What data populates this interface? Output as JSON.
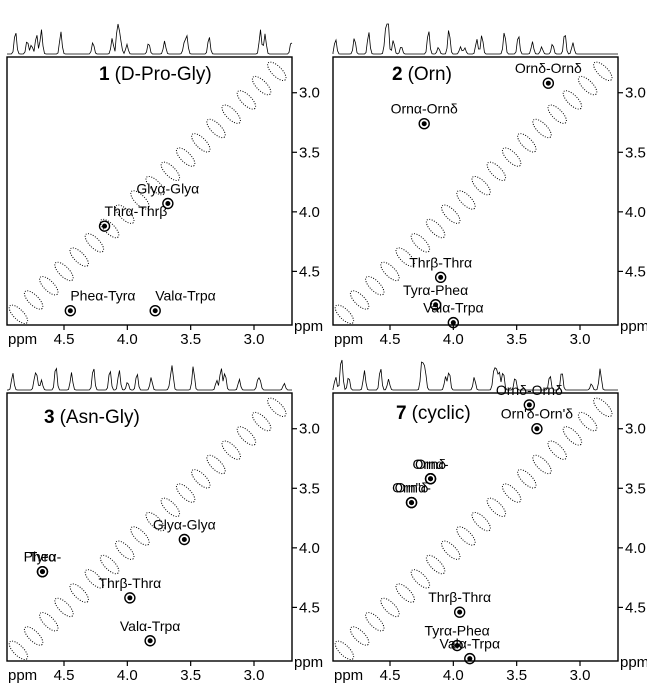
{
  "chart_data": [
    {
      "type": "contour",
      "panel_label": "1",
      "title": "(D-Pro-Gly)",
      "xlabel": "ppm",
      "ylabel": "ppm",
      "x_ticks": [
        4.5,
        4.0,
        3.5,
        3.0
      ],
      "y_ticks": [
        3.0,
        3.5,
        4.0,
        4.5
      ],
      "xlim": [
        4.95,
        2.7
      ],
      "ylim": [
        2.7,
        4.95
      ],
      "annotations": [
        {
          "text": "Thrα-Thrβ",
          "x": 4.18,
          "y": 4.12
        },
        {
          "text": "Glyα-Glyα",
          "x": 3.68,
          "y": 3.93
        },
        {
          "text": "Pheα-Tyrα",
          "x": 4.45,
          "y": 4.83
        },
        {
          "text": "Valα-Trpα",
          "x": 3.78,
          "y": 4.83
        }
      ]
    },
    {
      "type": "contour",
      "panel_label": "2",
      "title": "(Orn)",
      "xlabel": "ppm",
      "ylabel": "ppm",
      "x_ticks": [
        4.5,
        4.0,
        3.5,
        3.0
      ],
      "y_ticks": [
        3.0,
        3.5,
        4.0,
        4.5
      ],
      "xlim": [
        4.95,
        2.7
      ],
      "ylim": [
        2.7,
        4.95
      ],
      "annotations": [
        {
          "text": "Ornδ-Ornδ",
          "x": 3.25,
          "y": 2.92
        },
        {
          "text": "Ornα-Ornδ",
          "x": 4.23,
          "y": 3.26
        },
        {
          "text": "Thrβ-Thrα",
          "x": 4.1,
          "y": 4.55
        },
        {
          "text": "Tyrα-Pheα",
          "x": 4.14,
          "y": 4.78
        },
        {
          "text": "Valα-Trpα",
          "x": 4.0,
          "y": 4.93
        }
      ]
    },
    {
      "type": "contour",
      "panel_label": "3",
      "title": "(Asn-Gly)",
      "xlabel": "ppm",
      "ylabel": "ppm",
      "x_ticks": [
        4.5,
        4.0,
        3.5,
        3.0
      ],
      "y_ticks": [
        3.0,
        3.5,
        4.0,
        4.5
      ],
      "xlim": [
        4.95,
        2.7
      ],
      "ylim": [
        2.7,
        4.95
      ],
      "annotations": [
        {
          "text": "Glyα-Glyα",
          "x": 3.55,
          "y": 3.93
        },
        {
          "text": "Pheα-",
          "x": 4.67,
          "y": 4.2
        },
        {
          "text": "Tyrα",
          "x": 4.67,
          "y": 4.2
        },
        {
          "text": "Thrβ-Thrα",
          "x": 3.98,
          "y": 4.42
        },
        {
          "text": "Valα-Trpα",
          "x": 3.82,
          "y": 4.78
        }
      ]
    },
    {
      "type": "contour",
      "panel_label": "7",
      "title": "(cyclic)",
      "xlabel": "ppm",
      "ylabel": "ppm",
      "x_ticks": [
        4.5,
        4.0,
        3.5,
        3.0
      ],
      "y_ticks": [
        3.0,
        3.5,
        4.0,
        4.5
      ],
      "xlim": [
        4.95,
        2.7
      ],
      "ylim": [
        2.7,
        4.95
      ],
      "annotations": [
        {
          "text": "Ornδ-Ornδ",
          "x": 3.4,
          "y": 2.8
        },
        {
          "text": "Orn'δ-Orn'δ",
          "x": 3.34,
          "y": 3.0
        },
        {
          "text": "Ornα-",
          "x": 4.18,
          "y": 3.42
        },
        {
          "text": "Ornδ",
          "x": 4.18,
          "y": 3.42
        },
        {
          "text": "Orn'α-",
          "x": 4.33,
          "y": 3.62
        },
        {
          "text": "Orn'δ",
          "x": 4.33,
          "y": 3.62
        },
        {
          "text": "Thrβ-Thrα",
          "x": 3.95,
          "y": 4.54
        },
        {
          "text": "Tyrα-Pheα",
          "x": 3.97,
          "y": 4.82
        },
        {
          "text": "Valα-Trpα",
          "x": 3.87,
          "y": 4.93
        }
      ]
    }
  ]
}
